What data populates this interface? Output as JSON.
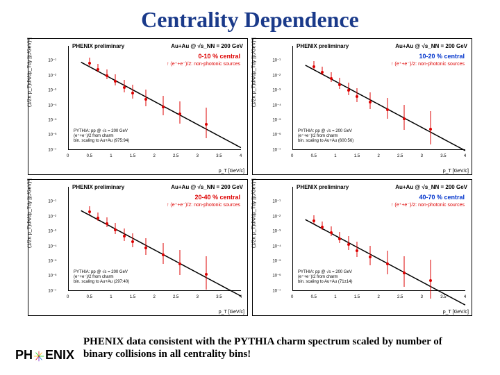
{
  "title": "Centrality Dependence",
  "caption": "PHENIX data consistent with the PYTHIA charm spectrum scaled by number of binary collisions in all centrality bins!",
  "logo": {
    "left": "PH",
    "right": "ENIX"
  },
  "common": {
    "preliminary": "PHENIX preliminary",
    "energy": "Au+Au @ √s_NN = 200 GeV",
    "ylabel": "(1/2π p_T)dN/dp_Tdy [(c/GeV)²]",
    "xlabel": "p_T [GeV/c]",
    "legend_data": "↑ (e⁺+e⁻)/2: non-photonic sources",
    "pythia_line1": "PYTHIA: pp @ √s = 200 GeV",
    "pythia_line2": "(e⁺+e⁻)/2 from charm",
    "xlim": [
      0,
      4
    ],
    "ylim_log": [
      -7,
      0
    ],
    "xticks": [
      "0",
      "0.5",
      "1",
      "1.5",
      "2",
      "2.5",
      "3",
      "3.5",
      "4"
    ],
    "yticks": [
      "10⁻¹",
      "10⁻²",
      "10⁻³",
      "10⁻⁴",
      "10⁻⁵",
      "10⁻⁶",
      "10⁻⁷"
    ],
    "background_color": "#ffffff",
    "axis_color": "#000000",
    "curve_color": "#000000",
    "curve_width": 1.5,
    "marker_color": "#dd0000",
    "marker_size": 4
  },
  "panels": [
    {
      "centrality": "0-10 % central",
      "centrality_color": "#dd0000",
      "pythia_scale": "bin. scaling to Au+Au (975:94)",
      "data": [
        {
          "x": 0.5,
          "logy": -1.2,
          "err": 6
        },
        {
          "x": 0.7,
          "logy": -1.6,
          "err": 6
        },
        {
          "x": 0.9,
          "logy": -2.0,
          "err": 7
        },
        {
          "x": 1.1,
          "logy": -2.4,
          "err": 8
        },
        {
          "x": 1.3,
          "logy": -2.8,
          "err": 9
        },
        {
          "x": 1.5,
          "logy": -3.2,
          "err": 10
        },
        {
          "x": 1.8,
          "logy": -3.6,
          "err": 12
        },
        {
          "x": 2.2,
          "logy": -4.1,
          "err": 14
        },
        {
          "x": 2.6,
          "logy": -4.6,
          "err": 16
        },
        {
          "x": 3.2,
          "logy": -5.3,
          "err": 22
        }
      ]
    },
    {
      "centrality": "10-20 % central",
      "centrality_color": "#0033cc",
      "pythia_scale": "bin. scaling to Au+Au (600:56)",
      "data": [
        {
          "x": 0.5,
          "logy": -1.4,
          "err": 6
        },
        {
          "x": 0.7,
          "logy": -1.8,
          "err": 6
        },
        {
          "x": 0.9,
          "logy": -2.2,
          "err": 7
        },
        {
          "x": 1.1,
          "logy": -2.6,
          "err": 8
        },
        {
          "x": 1.3,
          "logy": -3.0,
          "err": 9
        },
        {
          "x": 1.5,
          "logy": -3.4,
          "err": 10
        },
        {
          "x": 1.8,
          "logy": -3.8,
          "err": 12
        },
        {
          "x": 2.2,
          "logy": -4.3,
          "err": 15
        },
        {
          "x": 2.6,
          "logy": -4.9,
          "err": 18
        },
        {
          "x": 3.2,
          "logy": -5.6,
          "err": 24
        }
      ]
    },
    {
      "centrality": "20-40 % central",
      "centrality_color": "#dd0000",
      "pythia_scale": "bin. scaling to Au+Au (297:40)",
      "data": [
        {
          "x": 0.5,
          "logy": -1.7,
          "err": 6
        },
        {
          "x": 0.7,
          "logy": -2.1,
          "err": 6
        },
        {
          "x": 0.9,
          "logy": -2.5,
          "err": 7
        },
        {
          "x": 1.1,
          "logy": -2.9,
          "err": 8
        },
        {
          "x": 1.3,
          "logy": -3.3,
          "err": 9
        },
        {
          "x": 1.5,
          "logy": -3.7,
          "err": 10
        },
        {
          "x": 1.8,
          "logy": -4.1,
          "err": 12
        },
        {
          "x": 2.2,
          "logy": -4.6,
          "err": 15
        },
        {
          "x": 2.6,
          "logy": -5.2,
          "err": 18
        },
        {
          "x": 3.2,
          "logy": -5.9,
          "err": 24
        }
      ]
    },
    {
      "centrality": "40-70 % central",
      "centrality_color": "#0033cc",
      "pythia_scale": "bin. scaling to Au+Au (71±14)",
      "data": [
        {
          "x": 0.5,
          "logy": -2.3,
          "err": 6
        },
        {
          "x": 0.7,
          "logy": -2.7,
          "err": 6
        },
        {
          "x": 0.9,
          "logy": -3.1,
          "err": 7
        },
        {
          "x": 1.1,
          "logy": -3.5,
          "err": 8
        },
        {
          "x": 1.3,
          "logy": -3.9,
          "err": 10
        },
        {
          "x": 1.5,
          "logy": -4.3,
          "err": 11
        },
        {
          "x": 1.8,
          "logy": -4.7,
          "err": 14
        },
        {
          "x": 2.2,
          "logy": -5.2,
          "err": 17
        },
        {
          "x": 2.6,
          "logy": -5.8,
          "err": 22
        },
        {
          "x": 3.2,
          "logy": -6.3,
          "err": 28
        }
      ]
    }
  ]
}
